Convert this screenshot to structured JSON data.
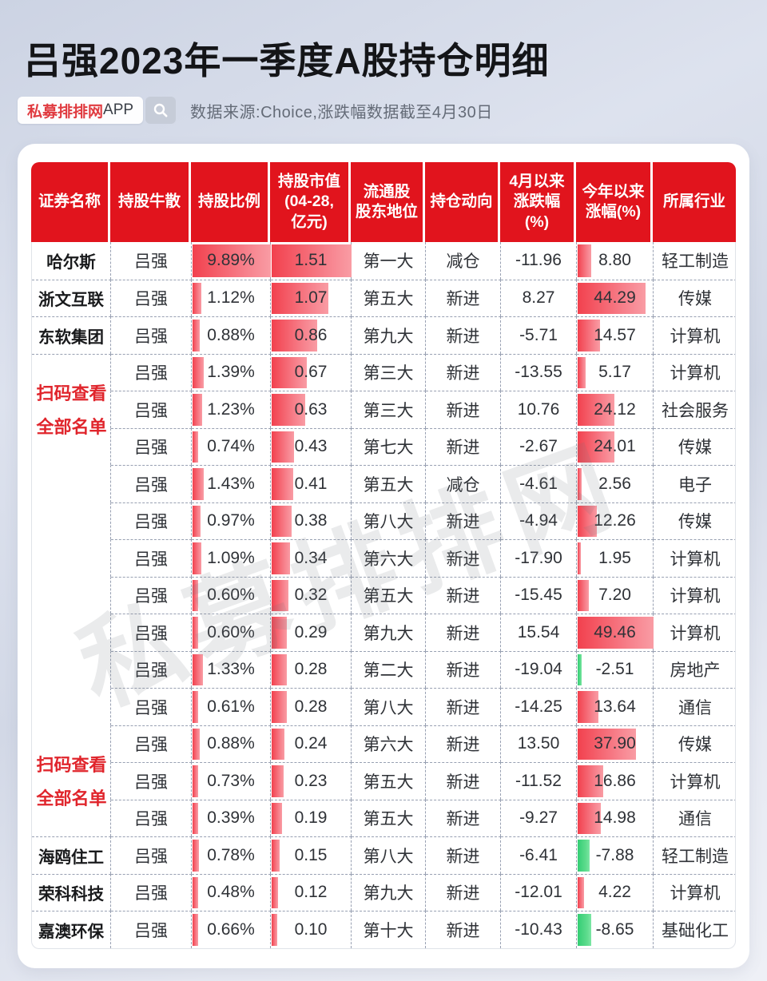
{
  "page": {
    "title": "吕强2023年一季度A股持仓明细",
    "badge": {
      "brand": "私募排排网",
      "suffix": "APP",
      "search_icon": "magnifier"
    },
    "source_note": "数据来源:Choice,涨跌幅数据截至4月30日"
  },
  "watermark": {
    "text": "私募排排网"
  },
  "colors": {
    "header_red": "#e1141d",
    "bar_red": "#f2414e",
    "bar_red_light": "#f99ca4",
    "bar_green": "#34cd74",
    "scan_label_red": "#e0252c",
    "dashed_border": "#98a0b2"
  },
  "table": {
    "headers": [
      "证券名称",
      "持股牛散",
      "持股比例",
      "持股市值\n(04-28,\n亿元)",
      "流通股\n股东地位",
      "持仓动向",
      "4月以来\n涨跌幅\n(%)",
      "今年以来\n涨幅(%)",
      "所属行业"
    ],
    "scan_label": {
      "line1": "扫码查看",
      "line2": "全部名单"
    },
    "rows": [
      {
        "name": "哈尔斯",
        "holder": "吕强",
        "pct": "9.89%",
        "mv": "1.51",
        "position": "第一大",
        "action": "减仓",
        "april": "-11.96",
        "ytd": "8.80",
        "industry": "轻工制造"
      },
      {
        "name": "浙文互联",
        "holder": "吕强",
        "pct": "1.12%",
        "mv": "1.07",
        "position": "第五大",
        "action": "新进",
        "april": "8.27",
        "ytd": "44.29",
        "industry": "传媒"
      },
      {
        "name": "东软集团",
        "holder": "吕强",
        "pct": "0.88%",
        "mv": "0.86",
        "position": "第九大",
        "action": "新进",
        "april": "-5.71",
        "ytd": "14.57",
        "industry": "计算机"
      },
      {
        "name": "",
        "holder": "吕强",
        "pct": "1.39%",
        "mv": "0.67",
        "position": "第三大",
        "action": "新进",
        "april": "-13.55",
        "ytd": "5.17",
        "industry": "计算机"
      },
      {
        "name": "",
        "holder": "吕强",
        "pct": "1.23%",
        "mv": "0.63",
        "position": "第三大",
        "action": "新进",
        "april": "10.76",
        "ytd": "24.12",
        "industry": "社会服务"
      },
      {
        "name": "",
        "holder": "吕强",
        "pct": "0.74%",
        "mv": "0.43",
        "position": "第七大",
        "action": "新进",
        "april": "-2.67",
        "ytd": "24.01",
        "industry": "传媒"
      },
      {
        "name": "",
        "holder": "吕强",
        "pct": "1.43%",
        "mv": "0.41",
        "position": "第五大",
        "action": "减仓",
        "april": "-4.61",
        "ytd": "2.56",
        "industry": "电子"
      },
      {
        "name": "",
        "holder": "吕强",
        "pct": "0.97%",
        "mv": "0.38",
        "position": "第八大",
        "action": "新进",
        "april": "-4.94",
        "ytd": "12.26",
        "industry": "传媒"
      },
      {
        "name": "",
        "holder": "吕强",
        "pct": "1.09%",
        "mv": "0.34",
        "position": "第六大",
        "action": "新进",
        "april": "-17.90",
        "ytd": "1.95",
        "industry": "计算机"
      },
      {
        "name": "",
        "holder": "吕强",
        "pct": "0.60%",
        "mv": "0.32",
        "position": "第五大",
        "action": "新进",
        "april": "-15.45",
        "ytd": "7.20",
        "industry": "计算机"
      },
      {
        "name": "",
        "holder": "吕强",
        "pct": "0.60%",
        "mv": "0.29",
        "position": "第九大",
        "action": "新进",
        "april": "15.54",
        "ytd": "49.46",
        "industry": "计算机"
      },
      {
        "name": "",
        "holder": "吕强",
        "pct": "1.33%",
        "mv": "0.28",
        "position": "第二大",
        "action": "新进",
        "april": "-19.04",
        "ytd": "-2.51",
        "industry": "房地产"
      },
      {
        "name": "",
        "holder": "吕强",
        "pct": "0.61%",
        "mv": "0.28",
        "position": "第八大",
        "action": "新进",
        "april": "-14.25",
        "ytd": "13.64",
        "industry": "通信"
      },
      {
        "name": "",
        "holder": "吕强",
        "pct": "0.88%",
        "mv": "0.24",
        "position": "第六大",
        "action": "新进",
        "april": "13.50",
        "ytd": "37.90",
        "industry": "传媒"
      },
      {
        "name": "",
        "holder": "吕强",
        "pct": "0.73%",
        "mv": "0.23",
        "position": "第五大",
        "action": "新进",
        "april": "-11.52",
        "ytd": "16.86",
        "industry": "计算机"
      },
      {
        "name": "",
        "holder": "吕强",
        "pct": "0.39%",
        "mv": "0.19",
        "position": "第五大",
        "action": "新进",
        "april": "-9.27",
        "ytd": "14.98",
        "industry": "通信"
      },
      {
        "name": "海鸥住工",
        "holder": "吕强",
        "pct": "0.78%",
        "mv": "0.15",
        "position": "第八大",
        "action": "新进",
        "april": "-6.41",
        "ytd": "-7.88",
        "industry": "轻工制造"
      },
      {
        "name": "荣科科技",
        "holder": "吕强",
        "pct": "0.48%",
        "mv": "0.12",
        "position": "第九大",
        "action": "新进",
        "april": "-12.01",
        "ytd": "4.22",
        "industry": "计算机"
      },
      {
        "name": "嘉澳环保",
        "holder": "吕强",
        "pct": "0.66%",
        "mv": "0.10",
        "position": "第十大",
        "action": "新进",
        "april": "-10.43",
        "ytd": "-8.65",
        "industry": "基础化工"
      }
    ]
  }
}
